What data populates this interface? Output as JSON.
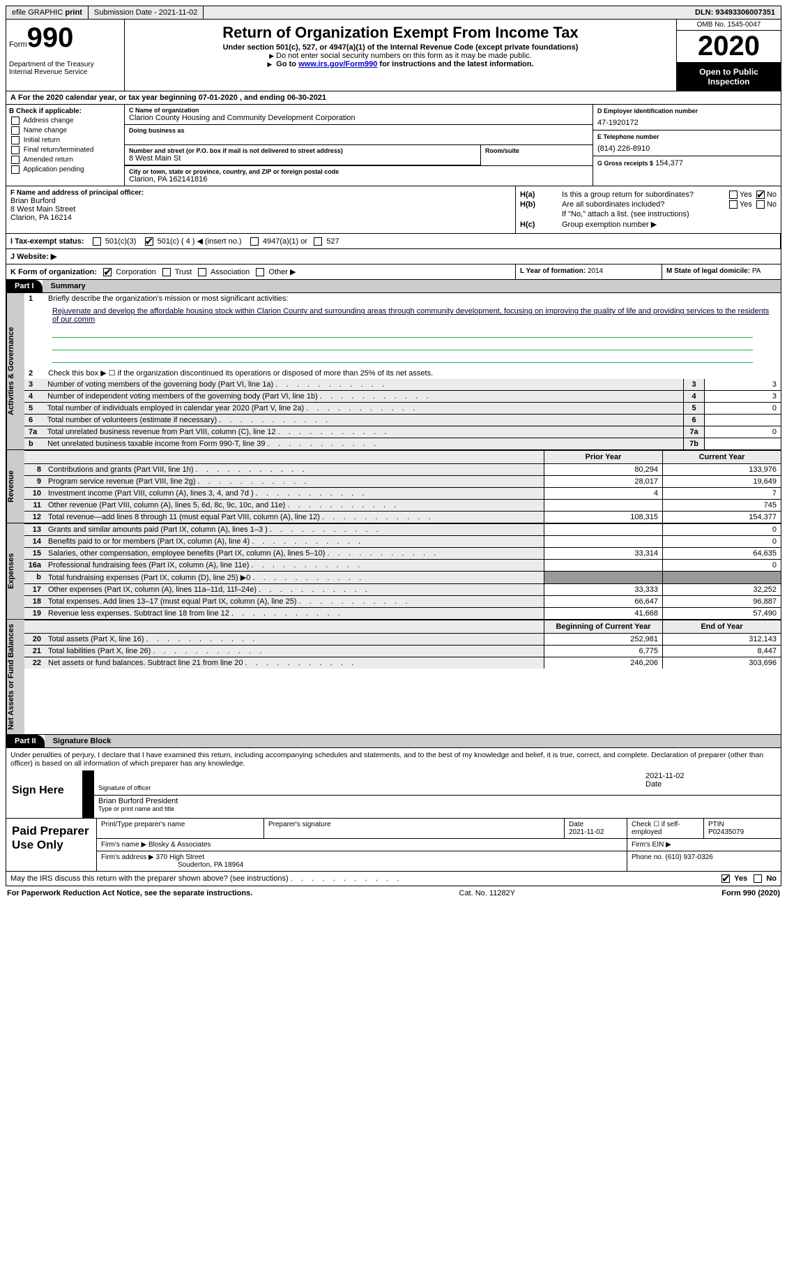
{
  "top": {
    "efile": "efile GRAPHIC",
    "print": "print",
    "submission": "Submission Date - 2021-11-02",
    "dln": "DLN: 93493306007351"
  },
  "header": {
    "form": "Form",
    "num": "990",
    "dept": "Department of the Treasury\nInternal Revenue Service",
    "title": "Return of Organization Exempt From Income Tax",
    "sub": "Under section 501(c), 527, or 4947(a)(1) of the Internal Revenue Code (except private foundations)",
    "note1": "Do not enter social security numbers on this form as it may be made public.",
    "note2_pre": "Go to ",
    "note2_link": "www.irs.gov/Form990",
    "note2_post": " for instructions and the latest information.",
    "omb": "OMB No. 1545-0047",
    "year": "2020",
    "open": "Open to Public Inspection"
  },
  "row_a": {
    "label": "A",
    "text": "For the 2020 calendar year, or tax year beginning 07-01-2020    , and ending 06-30-2021"
  },
  "b": {
    "label": "B Check if applicable:",
    "o1": "Address change",
    "o2": "Name change",
    "o3": "Initial return",
    "o4": "Final return/terminated",
    "o5": "Amended return",
    "o6": "Application pending"
  },
  "c": {
    "name_label": "C Name of organization",
    "name": "Clarion County Housing and Community Development Corporation",
    "dba_label": "Doing business as",
    "street_label": "Number and street (or P.O. box if mail is not delivered to street address)",
    "street": "8 West Main St",
    "room_label": "Room/suite",
    "city_label": "City or town, state or province, country, and ZIP or foreign postal code",
    "city": "Clarion, PA  162141816"
  },
  "d": {
    "ein_label": "D Employer identification number",
    "ein": "47-1920172",
    "tel_label": "E Telephone number",
    "tel": "(814) 226-8910",
    "gross_label": "G Gross receipts $",
    "gross": "154,377"
  },
  "f": {
    "label": "F  Name and address of principal officer:",
    "name": "Brian Burford",
    "addr1": "8 West Main Street",
    "addr2": "Clarion, PA  16214"
  },
  "h": {
    "a_lab": "H(a)",
    "a_q": "Is this a group return for subordinates?",
    "b_lab": "H(b)",
    "b_q": "Are all subordinates included?",
    "b_note": "If \"No,\" attach a list. (see instructions)",
    "c_lab": "H(c)",
    "c_q": "Group exemption number ▶",
    "yes": "Yes",
    "no": "No"
  },
  "i": {
    "label": "I  Tax-exempt status:",
    "o1": "501(c)(3)",
    "o2": "501(c) ( 4 ) ◀ (insert no.)",
    "o3": "4947(a)(1) or",
    "o4": "527"
  },
  "j": {
    "label": "J  Website: ▶"
  },
  "k": {
    "label": "K Form of organization:",
    "o1": "Corporation",
    "o2": "Trust",
    "o3": "Association",
    "o4": "Other ▶"
  },
  "l": {
    "label": "L Year of formation:",
    "val": "2014"
  },
  "m": {
    "label": "M State of legal domicile:",
    "val": "PA"
  },
  "parts": {
    "p1": "Part I",
    "p1_name": "Summary",
    "p2": "Part II",
    "p2_name": "Signature Block"
  },
  "sidebars": {
    "gov": "Activities & Governance",
    "rev": "Revenue",
    "exp": "Expenses",
    "net": "Net Assets or Fund Balances"
  },
  "summary": {
    "l1": "Briefly describe the organization's mission or most significant activities:",
    "l1_txt": "Rejuvenate and develop the affordable housing stock within Clarion County and surrounding areas through community development, focusing on improving the quality of life and providing services to the residents of our comm",
    "l2": "Check this box ▶ ☐  if the organization discontinued its operations or disposed of more than 25% of its net assets.",
    "l3": "Number of voting members of the governing body (Part VI, line 1a)",
    "l4": "Number of independent voting members of the governing body (Part VI, line 1b)",
    "l5": "Total number of individuals employed in calendar year 2020 (Part V, line 2a)",
    "l6": "Total number of volunteers (estimate if necessary)",
    "l7a": "Total unrelated business revenue from Part VIII, column (C), line 12",
    "l7b": "Net unrelated business taxable income from Form 990-T, line 39",
    "v3": "3",
    "v4": "3",
    "v5": "0",
    "v6": "",
    "v7a": "0",
    "v7b": ""
  },
  "fin": {
    "hdr_prior": "Prior Year",
    "hdr_curr": "Current Year",
    "hdr_beg": "Beginning of Current Year",
    "hdr_end": "End of Year",
    "rows_rev": [
      {
        "n": "8",
        "d": "Contributions and grants (Part VIII, line 1h)",
        "p": "80,294",
        "c": "133,976"
      },
      {
        "n": "9",
        "d": "Program service revenue (Part VIII, line 2g)",
        "p": "28,017",
        "c": "19,649"
      },
      {
        "n": "10",
        "d": "Investment income (Part VIII, column (A), lines 3, 4, and 7d )",
        "p": "4",
        "c": "7"
      },
      {
        "n": "11",
        "d": "Other revenue (Part VIII, column (A), lines 5, 6d, 8c, 9c, 10c, and 11e)",
        "p": "",
        "c": "745"
      },
      {
        "n": "12",
        "d": "Total revenue—add lines 8 through 11 (must equal Part VIII, column (A), line 12)",
        "p": "108,315",
        "c": "154,377"
      }
    ],
    "rows_exp": [
      {
        "n": "13",
        "d": "Grants and similar amounts paid (Part IX, column (A), lines 1–3 )",
        "p": "",
        "c": "0"
      },
      {
        "n": "14",
        "d": "Benefits paid to or for members (Part IX, column (A), line 4)",
        "p": "",
        "c": "0"
      },
      {
        "n": "15",
        "d": "Salaries, other compensation, employee benefits (Part IX, column (A), lines 5–10)",
        "p": "33,314",
        "c": "64,635"
      },
      {
        "n": "16a",
        "d": "Professional fundraising fees (Part IX, column (A), line 11e)",
        "p": "",
        "c": "0"
      },
      {
        "n": "b",
        "d": "Total fundraising expenses (Part IX, column (D), line 25) ▶0",
        "p": "GREY",
        "c": "GREY"
      },
      {
        "n": "17",
        "d": "Other expenses (Part IX, column (A), lines 11a–11d, 11f–24e)",
        "p": "33,333",
        "c": "32,252"
      },
      {
        "n": "18",
        "d": "Total expenses. Add lines 13–17 (must equal Part IX, column (A), line 25)",
        "p": "66,647",
        "c": "96,887"
      },
      {
        "n": "19",
        "d": "Revenue less expenses. Subtract line 18 from line 12",
        "p": "41,668",
        "c": "57,490"
      }
    ],
    "rows_net": [
      {
        "n": "20",
        "d": "Total assets (Part X, line 16)",
        "p": "252,981",
        "c": "312,143"
      },
      {
        "n": "21",
        "d": "Total liabilities (Part X, line 26)",
        "p": "6,775",
        "c": "8,447"
      },
      {
        "n": "22",
        "d": "Net assets or fund balances. Subtract line 21 from line 20",
        "p": "246,206",
        "c": "303,696"
      }
    ]
  },
  "penalty": "Under penalties of perjury, I declare that I have examined this return, including accompanying schedules and statements, and to the best of my knowledge and belief, it is true, correct, and complete. Declaration of preparer (other than officer) is based on all information of which preparer has any knowledge.",
  "sign": {
    "here": "Sign Here",
    "sig_lab": "Signature of officer",
    "date": "2021-11-02",
    "date_lab": "Date",
    "name": "Brian Burford President",
    "name_lab": "Type or print name and title"
  },
  "prep": {
    "title": "Paid Preparer Use Only",
    "h1": "Print/Type preparer's name",
    "h2": "Preparer's signature",
    "h3": "Date",
    "h3v": "2021-11-02",
    "h4": "Check ☐ if self-employed",
    "h5": "PTIN",
    "h5v": "P02435079",
    "firm_l": "Firm's name    ▶",
    "firm": "Blosky & Associates",
    "ein_l": "Firm's EIN ▶",
    "addr_l": "Firm's address ▶",
    "addr1": "370 High Street",
    "addr2": "Souderton, PA  18964",
    "phone_l": "Phone no.",
    "phone": "(610) 937-0326"
  },
  "discuss": "May the IRS discuss this return with the preparer shown above? (see instructions)",
  "footer": {
    "l": "For Paperwork Reduction Act Notice, see the separate instructions.",
    "m": "Cat. No. 11282Y",
    "r": "Form 990 (2020)"
  },
  "colors": {
    "bg_grey": "#ebebeb",
    "bg_cell": "#ebebeb",
    "black": "#000000",
    "link": "#0000cc"
  }
}
